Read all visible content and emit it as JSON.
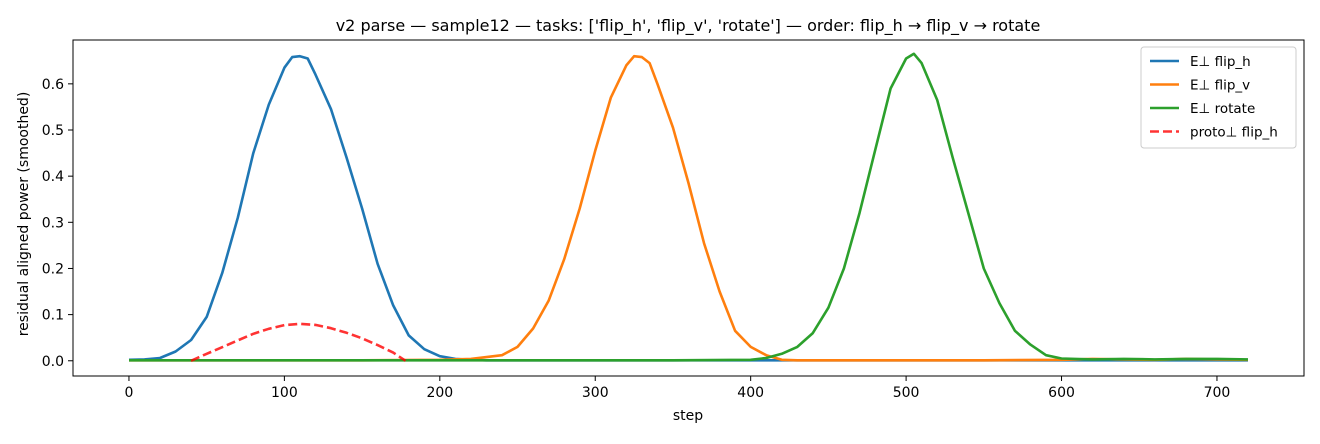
{
  "chart_data": {
    "type": "line",
    "title": "v2 parse — sample12 — tasks: ['flip_h', 'flip_v', 'rotate'] — order: flip_h → flip_v → rotate",
    "xlabel": "step",
    "ylabel": "residual aligned power (smoothed)",
    "xlim": [
      -36,
      756
    ],
    "ylim": [
      -0.033,
      0.695
    ],
    "xticks": [
      0,
      100,
      200,
      300,
      400,
      500,
      600,
      700
    ],
    "yticks": [
      0.0,
      0.1,
      0.2,
      0.3,
      0.4,
      0.5,
      0.6
    ],
    "xtick_labels": [
      "0",
      "100",
      "200",
      "300",
      "400",
      "500",
      "600",
      "700"
    ],
    "ytick_labels": [
      "0.0",
      "0.1",
      "0.2",
      "0.3",
      "0.4",
      "0.5",
      "0.6"
    ],
    "grid": false,
    "legend_position": "top-right",
    "series": [
      {
        "name": "E⊥ flip_h",
        "color": "#1f77b4",
        "style": "solid",
        "x": [
          0,
          10,
          20,
          30,
          40,
          50,
          60,
          70,
          80,
          90,
          100,
          105,
          110,
          115,
          120,
          130,
          140,
          150,
          160,
          170,
          180,
          190,
          200,
          210,
          220,
          230,
          240,
          250,
          300,
          350,
          400,
          450,
          500,
          550,
          600,
          650,
          700,
          720
        ],
        "y": [
          0.002,
          0.003,
          0.006,
          0.02,
          0.045,
          0.095,
          0.19,
          0.31,
          0.45,
          0.555,
          0.635,
          0.658,
          0.66,
          0.655,
          0.62,
          0.545,
          0.44,
          0.33,
          0.21,
          0.12,
          0.055,
          0.025,
          0.01,
          0.004,
          0.002,
          0.001,
          0.001,
          0.001,
          0.001,
          0.001,
          0.001,
          0.001,
          0.001,
          0.001,
          0.001,
          0.001,
          0.001,
          0.001
        ]
      },
      {
        "name": "E⊥ flip_v",
        "color": "#ff7f0e",
        "style": "solid",
        "x": [
          0,
          50,
          100,
          150,
          200,
          220,
          240,
          250,
          260,
          270,
          280,
          290,
          300,
          310,
          320,
          325,
          330,
          335,
          340,
          350,
          360,
          370,
          380,
          390,
          400,
          410,
          420,
          430,
          450,
          500,
          550,
          600,
          620,
          640,
          660,
          680,
          700,
          720
        ],
        "y": [
          0.001,
          0.001,
          0.001,
          0.001,
          0.002,
          0.004,
          0.012,
          0.03,
          0.07,
          0.13,
          0.22,
          0.33,
          0.455,
          0.57,
          0.64,
          0.66,
          0.658,
          0.645,
          0.6,
          0.505,
          0.385,
          0.255,
          0.15,
          0.065,
          0.03,
          0.012,
          0.002,
          0.001,
          0.001,
          0.001,
          0.001,
          0.002,
          0.004,
          0.003,
          0.002,
          0.004,
          0.003,
          0.002
        ]
      },
      {
        "name": "E⊥ rotate",
        "color": "#2ca02c",
        "style": "solid",
        "x": [
          0,
          50,
          100,
          150,
          200,
          250,
          300,
          350,
          400,
          410,
          420,
          430,
          440,
          450,
          460,
          470,
          480,
          490,
          500,
          505,
          510,
          520,
          530,
          540,
          550,
          560,
          570,
          580,
          590,
          600,
          620,
          640,
          660,
          680,
          700,
          720
        ],
        "y": [
          0.001,
          0.001,
          0.001,
          0.001,
          0.001,
          0.001,
          0.001,
          0.001,
          0.002,
          0.006,
          0.015,
          0.03,
          0.06,
          0.115,
          0.2,
          0.32,
          0.455,
          0.59,
          0.655,
          0.665,
          0.645,
          0.565,
          0.44,
          0.32,
          0.2,
          0.125,
          0.065,
          0.035,
          0.012,
          0.005,
          0.003,
          0.004,
          0.003,
          0.004,
          0.004,
          0.003
        ]
      },
      {
        "name": "proto⊥ flip_h",
        "color": "#ff0000",
        "style": "dashed",
        "x": [
          40,
          50,
          60,
          70,
          80,
          90,
          100,
          110,
          120,
          130,
          140,
          150,
          160,
          170,
          178
        ],
        "y": [
          0.0,
          0.0152,
          0.0294,
          0.0442,
          0.0585,
          0.0692,
          0.0772,
          0.08,
          0.0778,
          0.0706,
          0.0606,
          0.0487,
          0.0339,
          0.0176,
          0.0
        ]
      }
    ]
  }
}
